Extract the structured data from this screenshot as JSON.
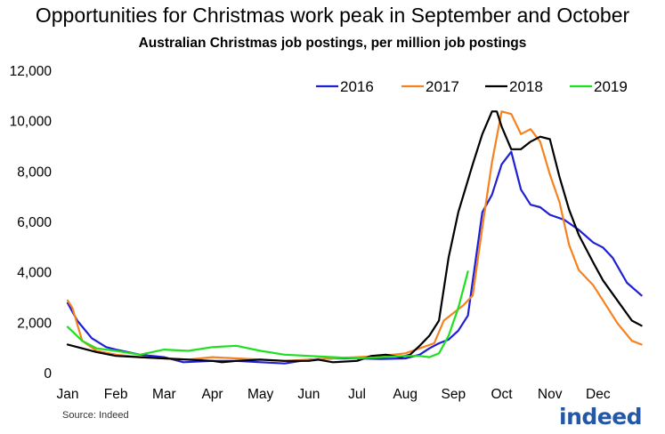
{
  "chart_data": {
    "type": "line",
    "title": "Opportunities for Christmas work peak in September and October",
    "subtitle": "Australian Christmas job postings, per million job postings",
    "xlabel": "",
    "ylabel": "",
    "x_ticks": [
      "Jan",
      "Feb",
      "Mar",
      "Apr",
      "May",
      "Jun",
      "Jul",
      "Aug",
      "Sep",
      "Oct",
      "Nov",
      "Dec"
    ],
    "y_ticks": [
      "0",
      "2,000",
      "4,000",
      "6,000",
      "8,000",
      "10,000",
      "12,000"
    ],
    "xlim": [
      0,
      12
    ],
    "ylim": [
      0,
      12000
    ],
    "grid": false,
    "legend": "top-right",
    "x_unit_note": "month index: 0 = start of Jan",
    "series": [
      {
        "name": "2016",
        "color": "#1f1fd6",
        "x": [
          0.0,
          0.2,
          0.5,
          0.8,
          1.0,
          1.5,
          2.0,
          2.4,
          3.0,
          3.5,
          4.0,
          4.5,
          5.0,
          5.5,
          6.0,
          6.5,
          7.0,
          7.3,
          7.5,
          7.7,
          7.9,
          8.1,
          8.3,
          8.6,
          8.8,
          9.0,
          9.2,
          9.4,
          9.6,
          9.8,
          10.0,
          10.3,
          10.6,
          10.9,
          11.1,
          11.3,
          11.6,
          11.9
        ],
        "y": [
          2800,
          2100,
          1400,
          1050,
          950,
          750,
          650,
          450,
          500,
          500,
          450,
          400,
          550,
          600,
          600,
          580,
          600,
          750,
          1000,
          1200,
          1350,
          1700,
          2300,
          6400,
          7100,
          8300,
          8800,
          7300,
          6700,
          6600,
          6300,
          6100,
          5700,
          5200,
          5000,
          4600,
          3600,
          3100
        ]
      },
      {
        "name": "2017",
        "color": "#f5821f",
        "x": [
          0.0,
          0.1,
          0.3,
          0.6,
          1.0,
          1.5,
          2.0,
          2.5,
          3.0,
          3.5,
          4.0,
          4.5,
          5.0,
          5.5,
          6.0,
          6.5,
          7.0,
          7.3,
          7.6,
          7.8,
          8.0,
          8.2,
          8.4,
          8.6,
          8.8,
          9.0,
          9.2,
          9.4,
          9.6,
          9.8,
          10.0,
          10.2,
          10.4,
          10.6,
          10.9,
          11.1,
          11.4,
          11.7,
          11.9
        ],
        "y": [
          2900,
          2600,
          1300,
          900,
          750,
          650,
          600,
          550,
          650,
          600,
          550,
          500,
          550,
          600,
          650,
          700,
          800,
          1000,
          1200,
          2100,
          2400,
          2700,
          3100,
          5800,
          8400,
          10400,
          10300,
          9500,
          9700,
          9200,
          7900,
          6800,
          5100,
          4100,
          3500,
          2900,
          2000,
          1300,
          1150
        ]
      },
      {
        "name": "2018",
        "color": "#000000",
        "x": [
          0.0,
          0.3,
          0.6,
          1.0,
          1.5,
          2.0,
          2.5,
          3.0,
          3.2,
          3.5,
          4.0,
          4.5,
          5.0,
          5.2,
          5.5,
          6.0,
          6.3,
          6.6,
          6.9,
          7.1,
          7.3,
          7.5,
          7.7,
          7.9,
          8.1,
          8.4,
          8.6,
          8.8,
          8.9,
          9.0,
          9.2,
          9.4,
          9.6,
          9.8,
          10.0,
          10.2,
          10.4,
          10.6,
          10.9,
          11.1,
          11.4,
          11.7,
          11.9
        ],
        "y": [
          1150,
          1000,
          850,
          700,
          650,
          600,
          550,
          500,
          450,
          500,
          550,
          500,
          500,
          550,
          450,
          500,
          700,
          750,
          650,
          750,
          1100,
          1500,
          2100,
          4600,
          6400,
          8300,
          9500,
          10400,
          10400,
          9800,
          8900,
          8900,
          9200,
          9400,
          9300,
          7800,
          6500,
          5500,
          4400,
          3700,
          2900,
          2100,
          1900
        ]
      },
      {
        "name": "2019",
        "color": "#1ee01e",
        "x": [
          0.0,
          0.3,
          0.6,
          1.0,
          1.5,
          2.0,
          2.5,
          3.0,
          3.5,
          4.0,
          4.5,
          5.0,
          5.5,
          6.0,
          6.5,
          7.0,
          7.3,
          7.5,
          7.7,
          7.9,
          8.1,
          8.3
        ],
        "y": [
          1850,
          1300,
          1000,
          900,
          750,
          950,
          900,
          1050,
          1100,
          900,
          750,
          700,
          650,
          600,
          650,
          700,
          700,
          650,
          800,
          1500,
          2600,
          4050
        ]
      }
    ]
  },
  "source": "Source: Indeed",
  "brand": {
    "name": "indeed",
    "color": "#2557a7"
  }
}
